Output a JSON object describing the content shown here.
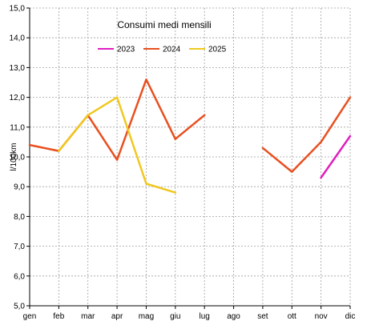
{
  "chart_data": {
    "type": "line",
    "title": "Consumi medi mensili",
    "xlabel": "",
    "ylabel": "l/100km",
    "categories": [
      "gen",
      "feb",
      "mar",
      "apr",
      "mag",
      "giu",
      "lug",
      "ago",
      "set",
      "ott",
      "nov",
      "dic"
    ],
    "ylim": [
      5.0,
      15.0
    ],
    "yticks": [
      "5,0",
      "6,0",
      "7,0",
      "8,0",
      "9,0",
      "10,0",
      "11,0",
      "12,0",
      "13,0",
      "14,0",
      "15,0"
    ],
    "grid": true,
    "legend_position": "top",
    "series": [
      {
        "name": "2023",
        "color": "#e020c0",
        "values": [
          null,
          null,
          null,
          null,
          null,
          null,
          null,
          null,
          null,
          null,
          9.3,
          10.7
        ]
      },
      {
        "name": "2024",
        "color": "#e85020",
        "values": [
          10.4,
          10.2,
          11.4,
          9.9,
          12.6,
          10.6,
          11.4,
          null,
          10.3,
          9.5,
          10.5,
          12.0
        ]
      },
      {
        "name": "2025",
        "color": "#f0c820",
        "values": [
          null,
          10.2,
          11.4,
          12.0,
          9.1,
          8.8,
          null,
          null,
          null,
          null,
          null,
          null
        ]
      }
    ]
  }
}
